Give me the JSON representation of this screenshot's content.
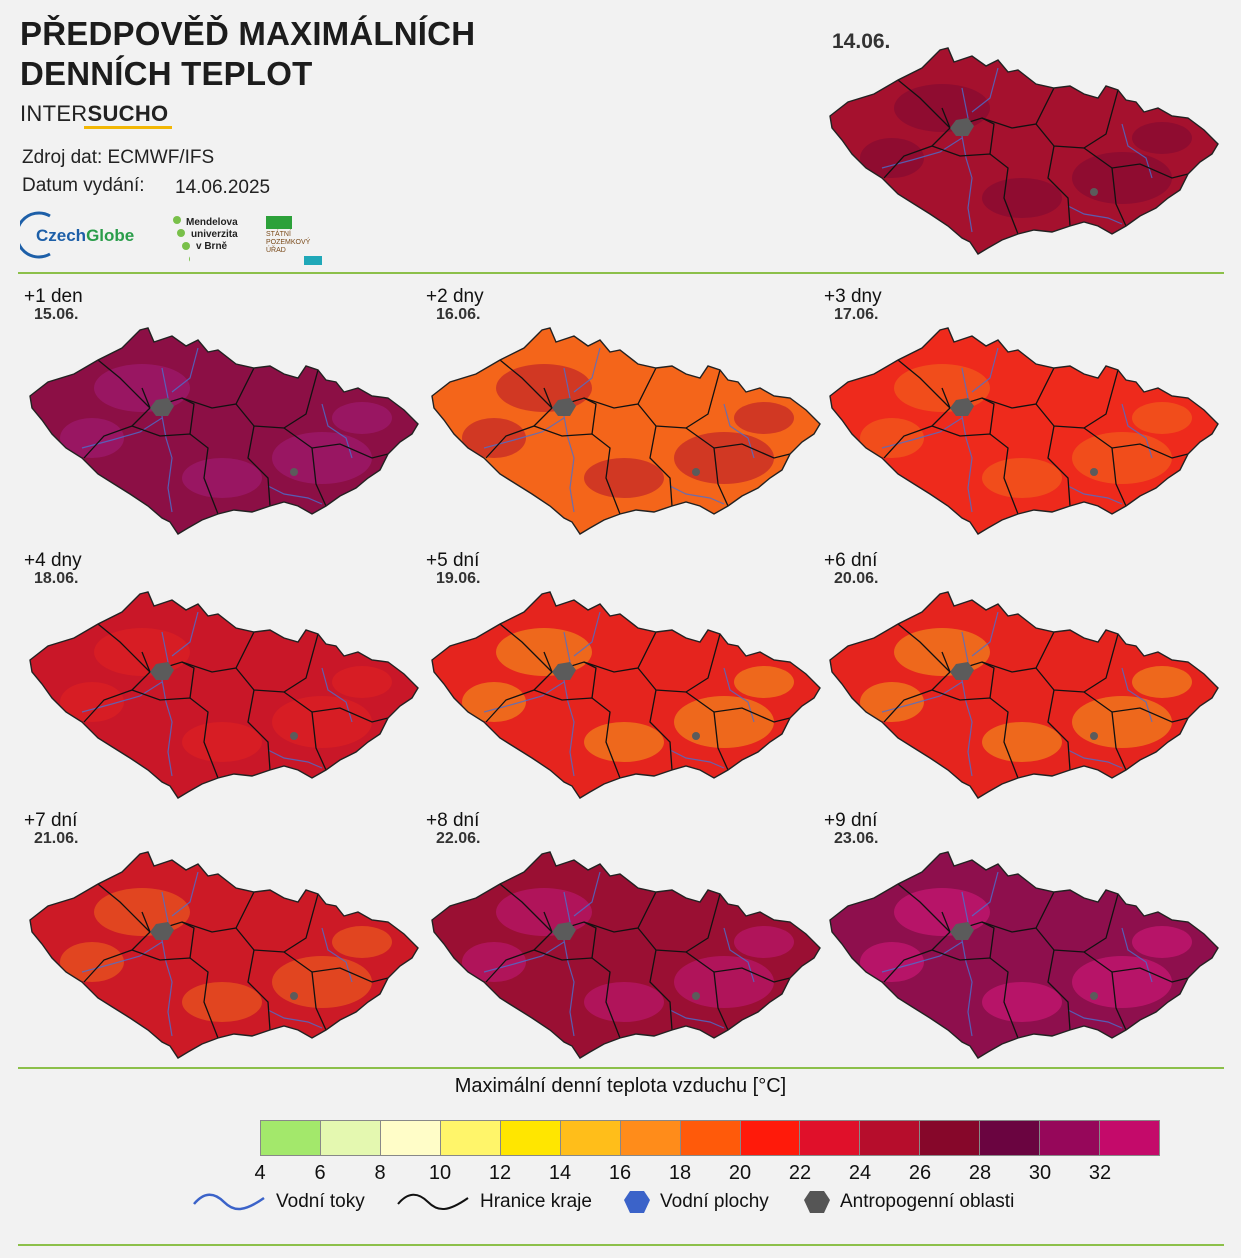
{
  "header": {
    "title_line1": "PŘEDPOVĚĎ MAXIMÁLNÍCH",
    "title_line2": "DENNÍCH TEPLOT",
    "brand_light": "INTER",
    "brand_bold": "SUCHO",
    "source_label": "Zdroj dat: ECMWF/IFS",
    "issue_label": "Datum vydání:",
    "issue_date": "14.06.2025"
  },
  "logos": {
    "czechglobe_part1": "Czech",
    "czechglobe_part2": "Globe",
    "mendel_lines": [
      "Mendelova",
      "univerzita",
      "v Brně"
    ],
    "spu_lines": [
      "STÁTNÍ",
      "POZEMKOVÝ",
      "ÚŘAD"
    ]
  },
  "top_map": {
    "date": "14.06.",
    "fill": "#a5112e",
    "accent": "#7e0a33"
  },
  "panels": [
    {
      "label": "+1 den",
      "date": "15.06.",
      "fill": "#8c0f45",
      "accent": "#a41d7a"
    },
    {
      "label": "+2 dny",
      "date": "16.06.",
      "fill": "#f4651a",
      "accent": "#b5142c"
    },
    {
      "label": "+3 dny",
      "date": "17.06.",
      "fill": "#ee2a1c",
      "accent": "#f46a1c"
    },
    {
      "label": "+4 dny",
      "date": "18.06.",
      "fill": "#c91728",
      "accent": "#e12320"
    },
    {
      "label": "+5 dní",
      "date": "19.06.",
      "fill": "#e5241e",
      "accent": "#f5a11c"
    },
    {
      "label": "+6 dní",
      "date": "20.06.",
      "fill": "#e5241e",
      "accent": "#f5a11c"
    },
    {
      "label": "+7 dní",
      "date": "21.06.",
      "fill": "#cc1a26",
      "accent": "#f26a1c"
    },
    {
      "label": "+8 dní",
      "date": "22.06.",
      "fill": "#9a0f33",
      "accent": "#c2197a"
    },
    {
      "label": "+9 dní",
      "date": "23.06.",
      "fill": "#8e0f4d",
      "accent": "#d81a80"
    }
  ],
  "legend": {
    "title": "Maximální denní teplota vzduchu [°C]",
    "colors": [
      "#a3e86b",
      "#e4f8b0",
      "#fffdc8",
      "#fff56a",
      "#ffe600",
      "#ffbe1a",
      "#ff8c1a",
      "#ff5a0a",
      "#ff1a0a",
      "#e0102a",
      "#b60d2c",
      "#86072a",
      "#6a0440",
      "#96075a",
      "#c40a6a"
    ],
    "ticks": [
      "4",
      "6",
      "8",
      "10",
      "12",
      "14",
      "16",
      "18",
      "20",
      "22",
      "24",
      "26",
      "28",
      "30",
      "32"
    ],
    "keys": [
      "Vodní toky",
      "Hranice kraje",
      "Vodní plochy",
      "Antropogenní oblasti"
    ]
  }
}
